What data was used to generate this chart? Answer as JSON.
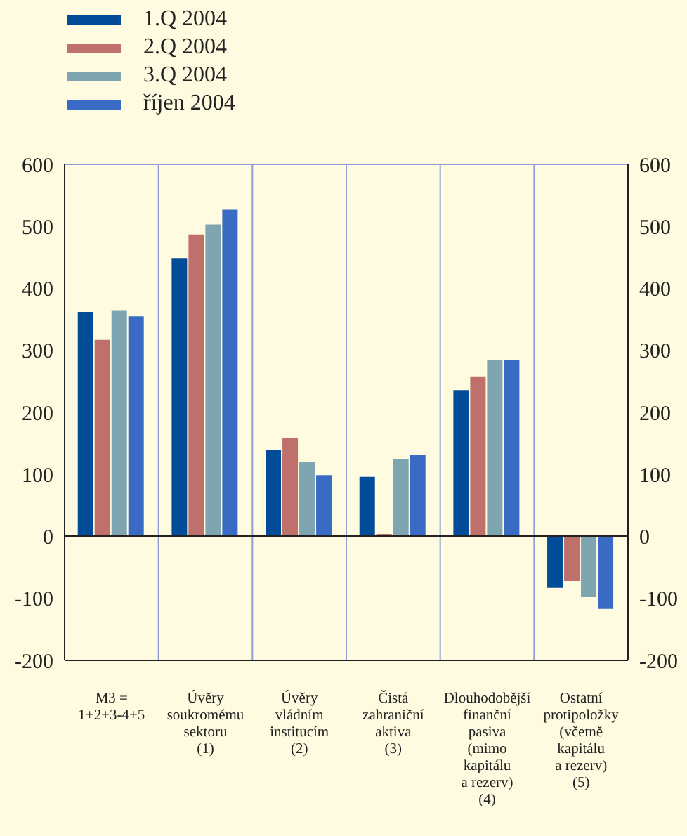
{
  "chart_data": {
    "type": "bar",
    "categories": [
      "M3 =\n1+2+3-4+5",
      "Úvěry\nsoukromému\nsektoru\n(1)",
      "Úvěry\nvládním\ninstitucím\n(2)",
      "Čistá\nzahraniční\naktiva\n(3)",
      "Dlouhodobější\nfinanční\npasiva\n(mimo\nkapitálu\na rezerv)\n(4)",
      "Ostatní\nprotipoložky\n(včetně\nkapitálu\na rezerv)\n(5)"
    ],
    "series": [
      {
        "name": "1.Q 2004",
        "color": "#004c99",
        "values": [
          362,
          449,
          140,
          96,
          236,
          -83
        ]
      },
      {
        "name": "2.Q 2004",
        "color": "#c0706a",
        "values": [
          317,
          487,
          158,
          4,
          258,
          -72
        ]
      },
      {
        "name": "3.Q 2004",
        "color": "#7fa5b0",
        "values": [
          365,
          503,
          120,
          125,
          285,
          -98
        ]
      },
      {
        "name": "říjen 2004",
        "color": "#3a6bc4",
        "values": [
          355,
          527,
          99,
          131,
          285,
          -117
        ]
      }
    ],
    "ylim": [
      -200,
      600
    ],
    "yticks": [
      -200,
      -100,
      0,
      100,
      200,
      300,
      400,
      500,
      600
    ],
    "y2lim": [
      -200,
      600
    ],
    "y2ticks": [
      -200,
      -100,
      0,
      100,
      200,
      300,
      400,
      500,
      600
    ],
    "grid": true,
    "legend": "top left"
  }
}
